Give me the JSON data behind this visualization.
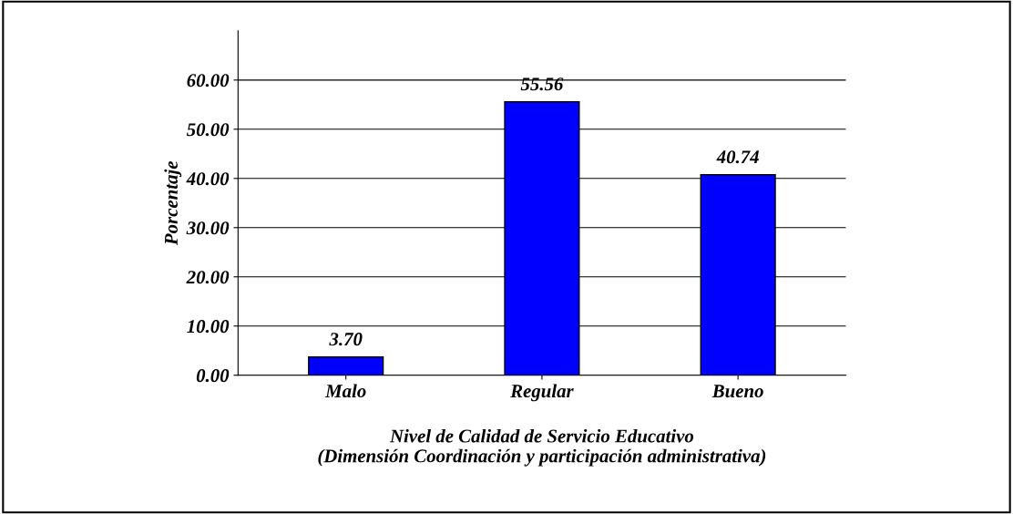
{
  "chart_data": {
    "type": "bar",
    "ylabel": "Porcentaje",
    "xlabel": "Nivel de Calidad de Servicio Educativo\n(Dimensión Coordinación y participación administrativa)",
    "categories": [
      "Malo",
      "Regular",
      "Bueno"
    ],
    "values": [
      3.7,
      55.56,
      40.74
    ],
    "value_labels": [
      "3.70",
      "55.56",
      "40.74"
    ],
    "color": "#0000ff",
    "ylim": [
      0,
      70
    ],
    "yticks": [
      {
        "value": 0,
        "label": "0.00"
      },
      {
        "value": 10,
        "label": "10.00"
      },
      {
        "value": 20,
        "label": "20.00"
      },
      {
        "value": 30,
        "label": "30.00"
      },
      {
        "value": 40,
        "label": "40.00"
      },
      {
        "value": 50,
        "label": "50.00"
      },
      {
        "value": 60,
        "label": "60.00"
      }
    ],
    "grid": "y"
  }
}
